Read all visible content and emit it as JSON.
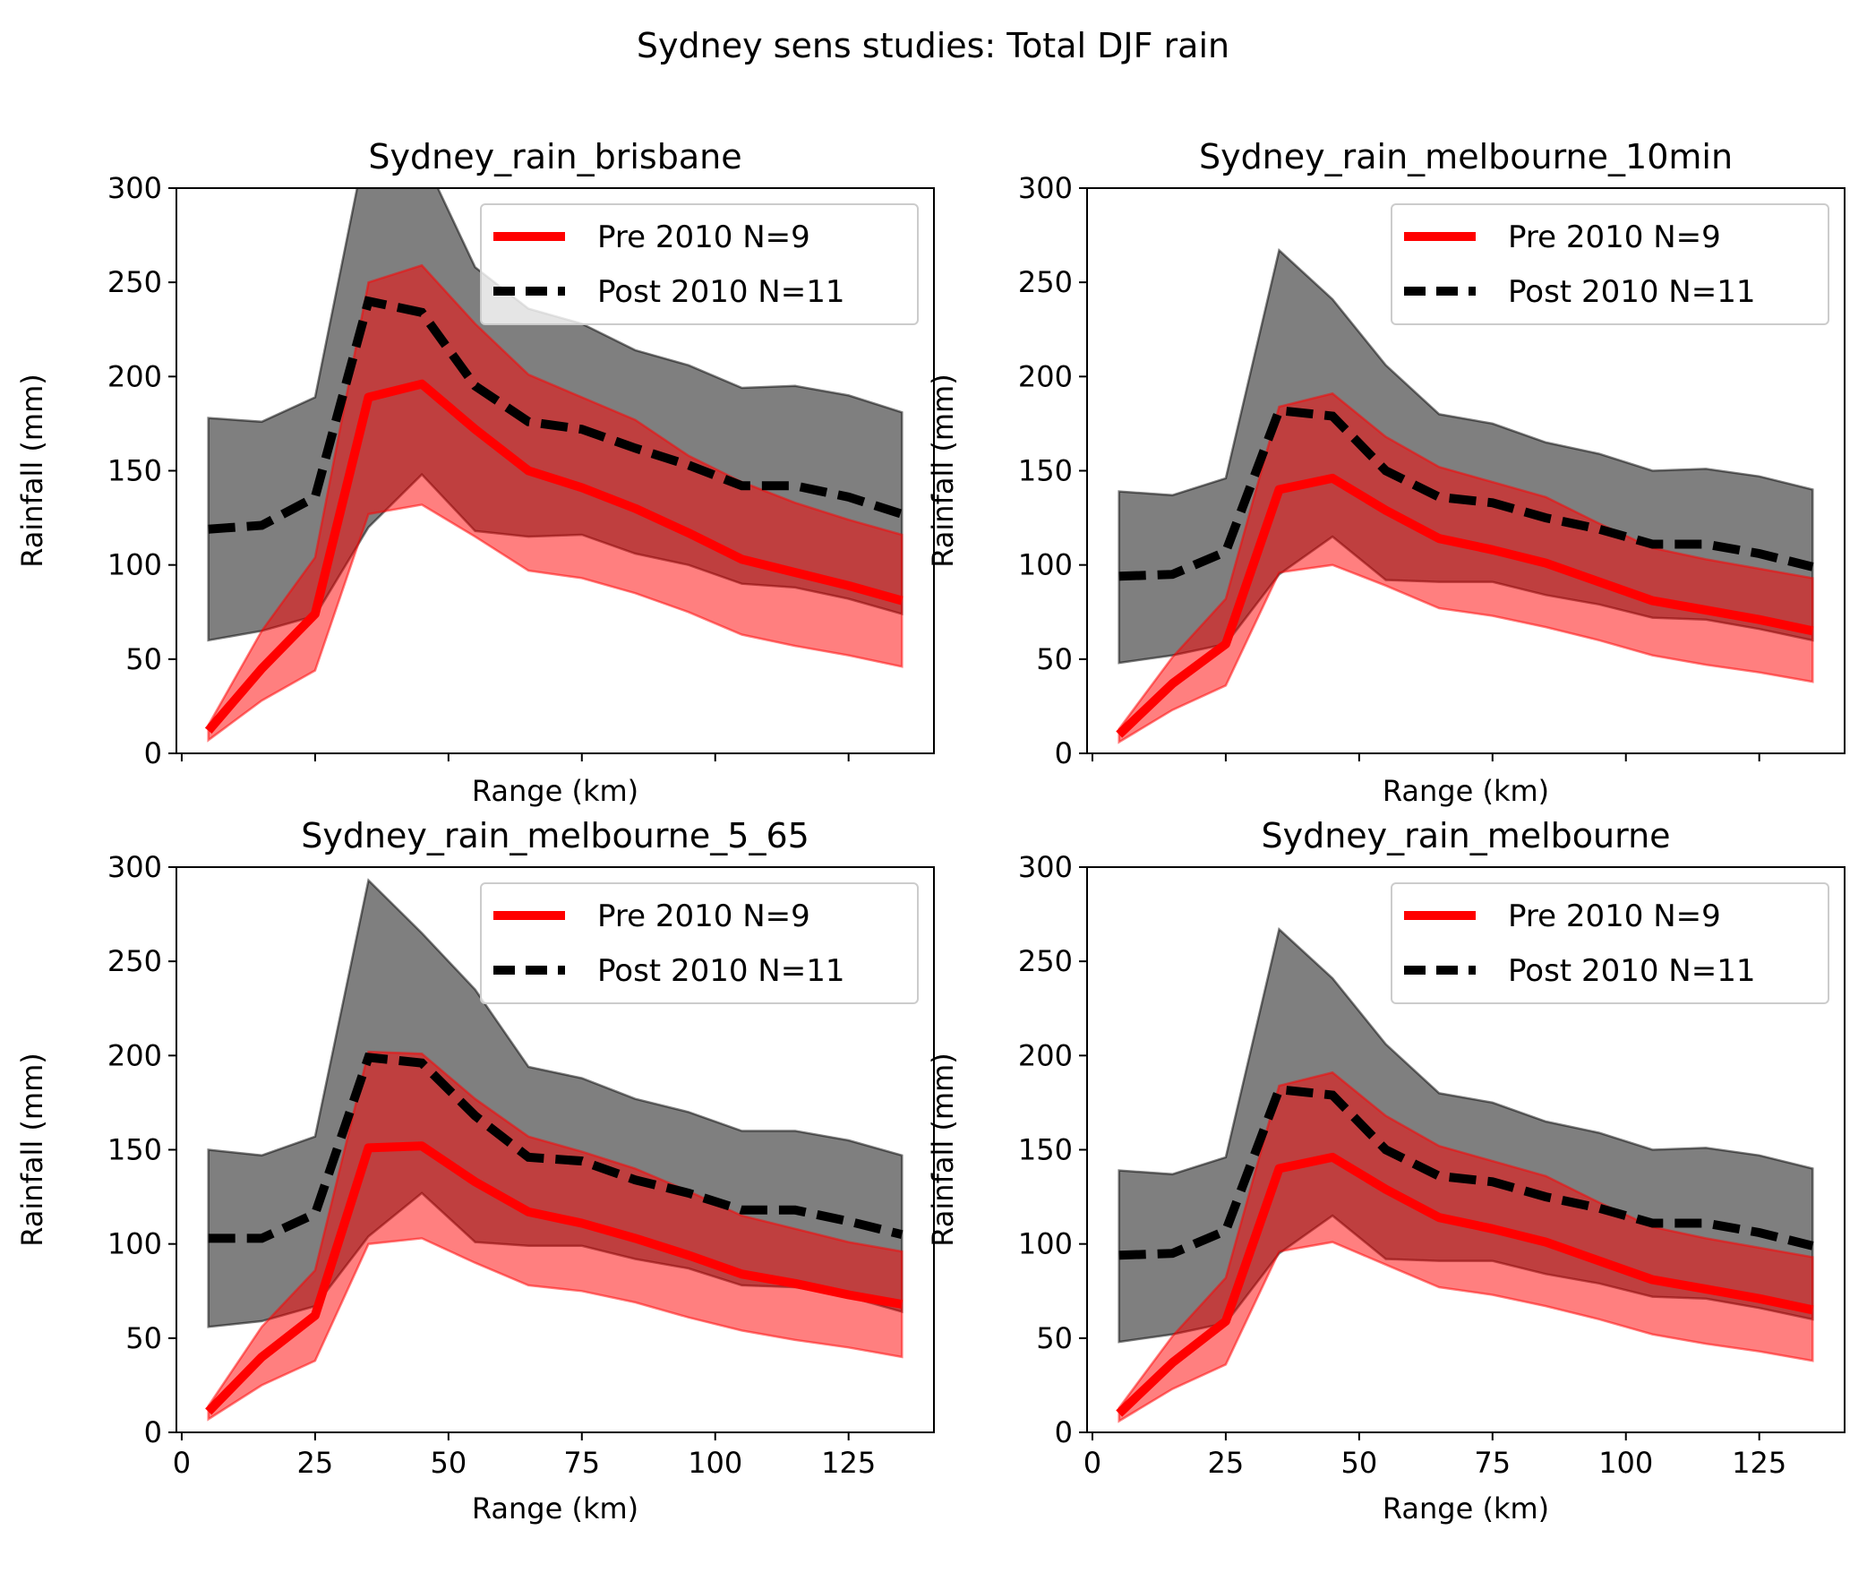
{
  "chart_data": {
    "type": "line",
    "title": "Sydney sens studies: Total DJF rain",
    "panels": [
      {
        "title": "Sydney_rain_brisbane",
        "xlabel": "Range (km)",
        "ylabel": "Rainfall (mm)",
        "xlim": [
          -1,
          141
        ],
        "ylim": [
          0,
          300
        ],
        "xticks": [
          0,
          25,
          50,
          75,
          100,
          125
        ],
        "yticks": [
          0,
          50,
          100,
          150,
          200,
          250,
          300
        ],
        "show_xticklabels": false,
        "legend_position": "upper right",
        "x": [
          5,
          15,
          25,
          35,
          45,
          55,
          65,
          75,
          85,
          95,
          105,
          115,
          125,
          135
        ],
        "series": [
          {
            "name": "Pre 2010 N=9",
            "color": "#ff0000",
            "style": "solid",
            "values": [
              12,
              45,
              74,
              189,
              196,
              172,
              150,
              141,
              130,
              117,
              103,
              96,
              89,
              81
            ],
            "band_lower": [
              7,
              28,
              44,
              127,
              132,
              115,
              97,
              93,
              85,
              75,
              63,
              57,
              52,
              46
            ],
            "band_upper": [
              15,
              65,
              104,
              250,
              259,
              228,
              201,
              189,
              177,
              158,
              144,
              133,
              124,
              116
            ]
          },
          {
            "name": "Post 2010 N=11",
            "color": "#000000",
            "style": "dashed",
            "values": [
              119,
              121,
              136,
              240,
              234,
              195,
              176,
              172,
              162,
              153,
              142,
              142,
              136,
              127
            ],
            "band_lower": [
              60,
              65,
              73,
              120,
              148,
              118,
              115,
              116,
              106,
              100,
              90,
              88,
              82,
              74
            ],
            "band_upper": [
              178,
              176,
              189,
              330,
              318,
              258,
              236,
              228,
              214,
              206,
              194,
              195,
              190,
              181
            ]
          }
        ]
      },
      {
        "title": "Sydney_rain_melbourne_10min",
        "xlabel": "Range (km)",
        "ylabel": "Rainfall (mm)",
        "xlim": [
          -1,
          141
        ],
        "ylim": [
          0,
          300
        ],
        "xticks": [
          0,
          25,
          50,
          75,
          100,
          125
        ],
        "yticks": [
          0,
          50,
          100,
          150,
          200,
          250,
          300
        ],
        "show_xticklabels": false,
        "legend_position": "upper right",
        "x": [
          5,
          15,
          25,
          35,
          45,
          55,
          65,
          75,
          85,
          95,
          105,
          115,
          125,
          135
        ],
        "series": [
          {
            "name": "Pre 2010 N=9",
            "color": "#ff0000",
            "style": "solid",
            "values": [
              10,
              37,
              58,
              140,
              146,
              129,
              114,
              108,
              101,
              91,
              81,
              76,
              71,
              65
            ],
            "band_lower": [
              6,
              23,
              36,
              96,
              100,
              89,
              77,
              73,
              67,
              60,
              52,
              47,
              43,
              38
            ],
            "band_upper": [
              13,
              51,
              82,
              184,
              191,
              168,
              152,
              144,
              136,
              122,
              109,
              103,
              98,
              93
            ]
          },
          {
            "name": "Post 2010 N=11",
            "color": "#000000",
            "style": "dashed",
            "values": [
              94,
              95,
              107,
              182,
              179,
              150,
              136,
              133,
              125,
              119,
              111,
              111,
              106,
              99
            ],
            "band_lower": [
              48,
              52,
              58,
              95,
              115,
              92,
              91,
              91,
              84,
              79,
              72,
              71,
              66,
              60
            ],
            "band_upper": [
              139,
              137,
              146,
              267,
              241,
              206,
              180,
              175,
              165,
              159,
              150,
              151,
              147,
              140
            ]
          }
        ]
      },
      {
        "title": "Sydney_rain_melbourne_5_65",
        "xlabel": "Range (km)",
        "ylabel": "Rainfall (mm)",
        "xlim": [
          -1,
          141
        ],
        "ylim": [
          0,
          300
        ],
        "xticks": [
          0,
          25,
          50,
          75,
          100,
          125
        ],
        "yticks": [
          0,
          50,
          100,
          150,
          200,
          250,
          300
        ],
        "show_xticklabels": true,
        "legend_position": "upper right",
        "x": [
          5,
          15,
          25,
          35,
          45,
          55,
          65,
          75,
          85,
          95,
          105,
          115,
          125,
          135
        ],
        "series": [
          {
            "name": "Pre 2010 N=9",
            "color": "#ff0000",
            "style": "solid",
            "values": [
              11,
              40,
              62,
              151,
              152,
              133,
              117,
              111,
              103,
              94,
              84,
              79,
              73,
              68
            ],
            "band_lower": [
              7,
              25,
              38,
              100,
              103,
              90,
              78,
              75,
              69,
              61,
              54,
              49,
              45,
              40
            ],
            "band_upper": [
              14,
              56,
              86,
              202,
              201,
              177,
              157,
              149,
              140,
              128,
              115,
              108,
              101,
              96
            ]
          },
          {
            "name": "Post 2010 N=11",
            "color": "#000000",
            "style": "dashed",
            "values": [
              103,
              103,
              116,
              199,
              196,
              168,
              146,
              144,
              134,
              127,
              118,
              118,
              112,
              105
            ],
            "band_lower": [
              56,
              59,
              67,
              104,
              127,
              101,
              99,
              99,
              92,
              87,
              78,
              77,
              72,
              64
            ],
            "band_upper": [
              150,
              147,
              157,
              293,
              265,
              235,
              194,
              188,
              177,
              170,
              160,
              160,
              155,
              147
            ]
          }
        ]
      },
      {
        "title": "Sydney_rain_melbourne",
        "xlabel": "Range (km)",
        "ylabel": "Rainfall (mm)",
        "xlim": [
          -1,
          141
        ],
        "ylim": [
          0,
          300
        ],
        "xticks": [
          0,
          25,
          50,
          75,
          100,
          125
        ],
        "yticks": [
          0,
          50,
          100,
          150,
          200,
          250,
          300
        ],
        "show_xticklabels": true,
        "legend_position": "upper right",
        "x": [
          5,
          15,
          25,
          35,
          45,
          55,
          65,
          75,
          85,
          95,
          105,
          115,
          125,
          135
        ],
        "series": [
          {
            "name": "Pre 2010 N=9",
            "color": "#ff0000",
            "style": "solid",
            "values": [
              10,
              37,
              59,
              140,
              146,
              129,
              114,
              108,
              101,
              91,
              81,
              76,
              71,
              65
            ],
            "band_lower": [
              6,
              23,
              36,
              96,
              101,
              89,
              77,
              73,
              67,
              60,
              52,
              47,
              43,
              38
            ],
            "band_upper": [
              13,
              51,
              82,
              184,
              191,
              168,
              152,
              144,
              136,
              122,
              109,
              103,
              98,
              93
            ]
          },
          {
            "name": "Post 2010 N=11",
            "color": "#000000",
            "style": "dashed",
            "values": [
              94,
              95,
              107,
              182,
              179,
              150,
              136,
              133,
              125,
              119,
              111,
              111,
              106,
              99
            ],
            "band_lower": [
              48,
              52,
              58,
              95,
              115,
              92,
              91,
              91,
              84,
              79,
              72,
              71,
              66,
              60
            ],
            "band_upper": [
              139,
              137,
              146,
              267,
              241,
              206,
              180,
              175,
              165,
              159,
              150,
              151,
              147,
              140
            ]
          }
        ]
      }
    ]
  }
}
